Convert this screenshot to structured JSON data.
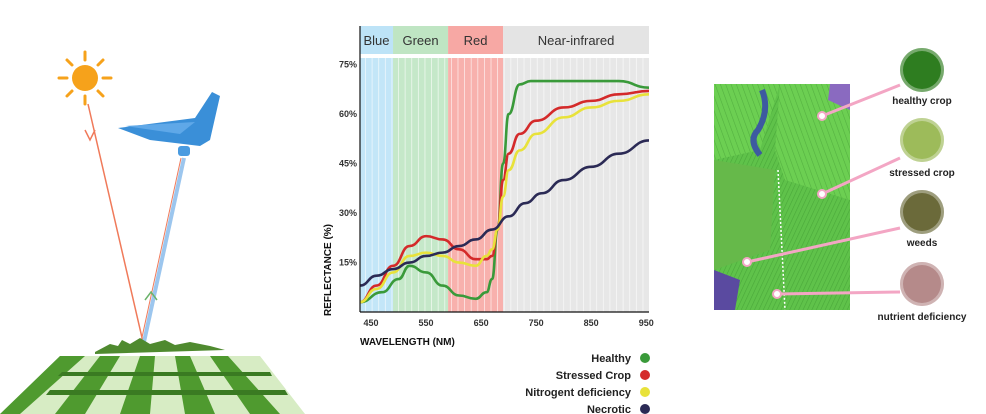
{
  "chart_data": {
    "type": "line",
    "xlabel": "WAVELENGTH (NM)",
    "ylabel": "REFLECTANCE (%)",
    "xlim": [
      430,
      955
    ],
    "ylim": [
      0,
      77
    ],
    "x_ticks": [
      "450",
      "550",
      "650",
      "750",
      "850",
      "950"
    ],
    "y_ticks": [
      "15%",
      "30%",
      "45%",
      "60%",
      "75%"
    ],
    "grid": "vertical",
    "legend_position": "bottom-right",
    "bands": [
      {
        "name": "Blue",
        "from": 430,
        "to": 490,
        "color": "#bde3f7"
      },
      {
        "name": "Green",
        "from": 490,
        "to": 590,
        "color": "#bfe5c3"
      },
      {
        "name": "Red",
        "from": 590,
        "to": 690,
        "color": "#f7a8a4"
      },
      {
        "name": "Near-infrared",
        "from": 690,
        "to": 955,
        "color": "#e4e4e4"
      }
    ],
    "series": [
      {
        "name": "Healthy",
        "color": "#3a9a3a",
        "x": [
          430,
          470,
          500,
          520,
          550,
          580,
          610,
          640,
          660,
          670,
          680,
          690,
          700,
          720,
          740,
          780,
          850,
          900,
          955
        ],
        "y": [
          3,
          6,
          10,
          14,
          12,
          8,
          5,
          4,
          6,
          10,
          25,
          45,
          60,
          69,
          70,
          70,
          70,
          70,
          68
        ]
      },
      {
        "name": "Stressed Crop",
        "color": "#d42a2a",
        "x": [
          430,
          460,
          490,
          520,
          550,
          580,
          610,
          640,
          660,
          670,
          680,
          690,
          700,
          720,
          750,
          800,
          850,
          900,
          955
        ],
        "y": [
          3,
          8,
          14,
          20,
          23,
          22,
          19,
          16,
          16,
          17,
          25,
          40,
          48,
          54,
          58,
          62,
          64,
          66,
          67
        ]
      },
      {
        "name": "Nitrogent deficiency",
        "color": "#e8e23a",
        "x": [
          430,
          460,
          490,
          520,
          550,
          580,
          610,
          640,
          660,
          670,
          680,
          690,
          700,
          720,
          750,
          800,
          850,
          900,
          955
        ],
        "y": [
          3,
          7,
          12,
          17,
          18,
          17,
          15,
          14,
          17,
          19,
          25,
          35,
          43,
          49,
          54,
          59,
          62,
          64,
          66
        ]
      },
      {
        "name": "Necrotic",
        "color": "#2b2a55",
        "x": [
          430,
          460,
          490,
          520,
          550,
          580,
          610,
          640,
          670,
          700,
          730,
          760,
          800,
          850,
          900,
          955
        ],
        "y": [
          8,
          11,
          13,
          15,
          17,
          18,
          20,
          22,
          25,
          29,
          33,
          36,
          40,
          44,
          48,
          52
        ]
      }
    ]
  },
  "annotations": [
    {
      "label": "healthy crop",
      "color": "#2e7d20"
    },
    {
      "label": "stressed crop",
      "color": "#9dbb5a"
    },
    {
      "label": "weeds",
      "color": "#6b6a3a"
    },
    {
      "label": "nutrient deficiency",
      "color": "#b58a8a"
    }
  ]
}
